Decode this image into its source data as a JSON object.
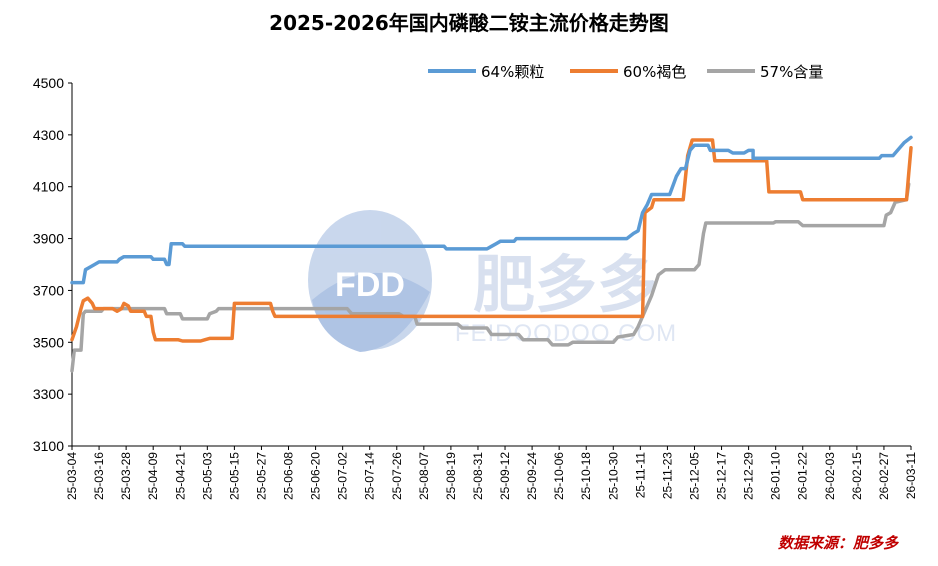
{
  "chart_data": {
    "type": "line",
    "title": "2025-2026年国内磷酸二铵主流价格走势图",
    "ylim": [
      3100,
      4500
    ],
    "yticks": [
      3100,
      3300,
      3500,
      3700,
      3900,
      4100,
      4300,
      4500
    ],
    "xlabels": [
      "25-03-04",
      "25-03-16",
      "25-03-28",
      "25-04-09",
      "25-04-21",
      "25-05-03",
      "25-05-15",
      "25-05-27",
      "25-06-08",
      "25-06-20",
      "25-07-02",
      "25-07-14",
      "25-07-26",
      "25-08-07",
      "25-08-19",
      "25-08-31",
      "25-09-12",
      "25-09-24",
      "25-10-06",
      "25-10-18",
      "25-10-30",
      "25-11-11",
      "25-11-23",
      "25-12-05",
      "25-12-17",
      "25-12-29",
      "26-01-10",
      "26-01-22",
      "26-02-03",
      "26-02-15",
      "26-02-27",
      "26-03-11"
    ],
    "grid": false,
    "legend_position": "top-right",
    "series": [
      {
        "name": "64%颗粒",
        "color": "#5b9bd5",
        "points": [
          [
            "25-03-04",
            3730
          ],
          [
            "25-03-06",
            3730
          ],
          [
            "25-03-09",
            3730
          ],
          [
            "25-03-10",
            3780
          ],
          [
            "25-03-12",
            3790
          ],
          [
            "25-03-14",
            3800
          ],
          [
            "25-03-16",
            3810
          ],
          [
            "25-03-24",
            3810
          ],
          [
            "25-03-25",
            3820
          ],
          [
            "25-03-27",
            3830
          ],
          [
            "25-04-08",
            3830
          ],
          [
            "25-04-09",
            3820
          ],
          [
            "25-04-14",
            3820
          ],
          [
            "25-04-15",
            3800
          ],
          [
            "25-04-16",
            3800
          ],
          [
            "25-04-17",
            3880
          ],
          [
            "25-04-22",
            3880
          ],
          [
            "25-04-23",
            3870
          ],
          [
            "25-08-16",
            3870
          ],
          [
            "25-08-17",
            3860
          ],
          [
            "25-09-04",
            3860
          ],
          [
            "25-09-06",
            3870
          ],
          [
            "25-09-08",
            3880
          ],
          [
            "25-09-10",
            3890
          ],
          [
            "25-09-16",
            3890
          ],
          [
            "25-09-17",
            3900
          ],
          [
            "25-11-05",
            3900
          ],
          [
            "25-11-08",
            3920
          ],
          [
            "25-11-10",
            3930
          ],
          [
            "25-11-12",
            4000
          ],
          [
            "25-11-14",
            4030
          ],
          [
            "25-11-16",
            4070
          ],
          [
            "25-11-24",
            4070
          ],
          [
            "25-11-27",
            4140
          ],
          [
            "25-11-29",
            4170
          ],
          [
            "25-12-01",
            4170
          ],
          [
            "25-12-03",
            4240
          ],
          [
            "25-12-05",
            4260
          ],
          [
            "25-12-11",
            4260
          ],
          [
            "25-12-12",
            4240
          ],
          [
            "25-12-20",
            4240
          ],
          [
            "25-12-22",
            4230
          ],
          [
            "25-12-27",
            4230
          ],
          [
            "25-12-29",
            4240
          ],
          [
            "25-12-31",
            4240
          ],
          [
            "25-12-31",
            4210
          ],
          [
            "26-02-25",
            4210
          ],
          [
            "26-02-26",
            4220
          ],
          [
            "26-03-03",
            4220
          ],
          [
            "26-03-05",
            4240
          ],
          [
            "26-03-08",
            4270
          ],
          [
            "26-03-11",
            4290
          ]
        ]
      },
      {
        "name": "60%褐色",
        "color": "#ed7d31",
        "points": [
          [
            "25-03-04",
            3510
          ],
          [
            "25-03-06",
            3560
          ],
          [
            "25-03-08",
            3630
          ],
          [
            "25-03-09",
            3660
          ],
          [
            "25-03-11",
            3670
          ],
          [
            "25-03-13",
            3650
          ],
          [
            "25-03-14",
            3630
          ],
          [
            "25-03-22",
            3630
          ],
          [
            "25-03-24",
            3620
          ],
          [
            "25-03-26",
            3630
          ],
          [
            "25-03-27",
            3650
          ],
          [
            "25-03-29",
            3640
          ],
          [
            "25-03-30",
            3620
          ],
          [
            "25-04-05",
            3620
          ],
          [
            "25-04-06",
            3600
          ],
          [
            "25-04-08",
            3600
          ],
          [
            "25-04-09",
            3540
          ],
          [
            "25-04-10",
            3510
          ],
          [
            "25-04-20",
            3510
          ],
          [
            "25-04-22",
            3505
          ],
          [
            "25-04-30",
            3505
          ],
          [
            "25-05-02",
            3510
          ],
          [
            "25-05-04",
            3515
          ],
          [
            "25-05-14",
            3515
          ],
          [
            "25-05-15",
            3650
          ],
          [
            "25-05-31",
            3650
          ],
          [
            "25-06-01",
            3620
          ],
          [
            "25-06-02",
            3600
          ],
          [
            "25-11-12",
            3600
          ],
          [
            "25-11-13",
            4000
          ],
          [
            "25-11-16",
            4020
          ],
          [
            "25-11-17",
            4050
          ],
          [
            "25-11-30",
            4050
          ],
          [
            "25-12-02",
            4220
          ],
          [
            "25-12-04",
            4280
          ],
          [
            "25-12-13",
            4280
          ],
          [
            "25-12-14",
            4200
          ],
          [
            "26-01-06",
            4200
          ],
          [
            "26-01-07",
            4080
          ],
          [
            "26-01-21",
            4080
          ],
          [
            "26-01-22",
            4050
          ],
          [
            "26-03-09",
            4050
          ],
          [
            "26-03-10",
            4150
          ],
          [
            "26-03-11",
            4250
          ]
        ]
      },
      {
        "name": "57%含量",
        "color": "#a5a5a5",
        "points": [
          [
            "25-03-04",
            3390
          ],
          [
            "25-03-05",
            3470
          ],
          [
            "25-03-08",
            3470
          ],
          [
            "25-03-09",
            3610
          ],
          [
            "25-03-10",
            3620
          ],
          [
            "25-03-17",
            3620
          ],
          [
            "25-03-18",
            3630
          ],
          [
            "25-04-14",
            3630
          ],
          [
            "25-04-15",
            3610
          ],
          [
            "25-04-21",
            3610
          ],
          [
            "25-04-22",
            3590
          ],
          [
            "25-05-03",
            3590
          ],
          [
            "25-05-04",
            3610
          ],
          [
            "25-05-07",
            3620
          ],
          [
            "25-05-08",
            3630
          ],
          [
            "25-07-04",
            3630
          ],
          [
            "25-07-06",
            3610
          ],
          [
            "25-07-27",
            3610
          ],
          [
            "25-07-29",
            3600
          ],
          [
            "25-08-03",
            3600
          ],
          [
            "25-08-04",
            3570
          ],
          [
            "25-08-22",
            3570
          ],
          [
            "25-08-24",
            3555
          ],
          [
            "25-09-04",
            3555
          ],
          [
            "25-09-06",
            3530
          ],
          [
            "25-09-18",
            3530
          ],
          [
            "25-09-20",
            3510
          ],
          [
            "25-10-01",
            3510
          ],
          [
            "25-10-03",
            3490
          ],
          [
            "25-10-10",
            3490
          ],
          [
            "25-10-12",
            3500
          ],
          [
            "25-10-30",
            3500
          ],
          [
            "25-11-01",
            3520
          ],
          [
            "25-11-08",
            3530
          ],
          [
            "25-11-10",
            3560
          ],
          [
            "25-11-13",
            3620
          ],
          [
            "25-11-16",
            3680
          ],
          [
            "25-11-19",
            3760
          ],
          [
            "25-11-22",
            3780
          ],
          [
            "25-12-05",
            3780
          ],
          [
            "25-12-07",
            3800
          ],
          [
            "25-12-09",
            3920
          ],
          [
            "25-12-10",
            3960
          ],
          [
            "26-01-09",
            3960
          ],
          [
            "26-01-10",
            3965
          ],
          [
            "26-01-20",
            3965
          ],
          [
            "26-01-22",
            3950
          ],
          [
            "26-02-27",
            3950
          ],
          [
            "26-02-28",
            3990
          ],
          [
            "26-03-02",
            4000
          ],
          [
            "26-03-04",
            4040
          ],
          [
            "26-03-09",
            4050
          ],
          [
            "26-03-10",
            4110
          ]
        ]
      }
    ],
    "source": "数据来源：肥多多"
  },
  "watermark": {
    "logo": "FDD",
    "brand": "肥多多",
    "url": "FEIDOODOO.COM"
  }
}
